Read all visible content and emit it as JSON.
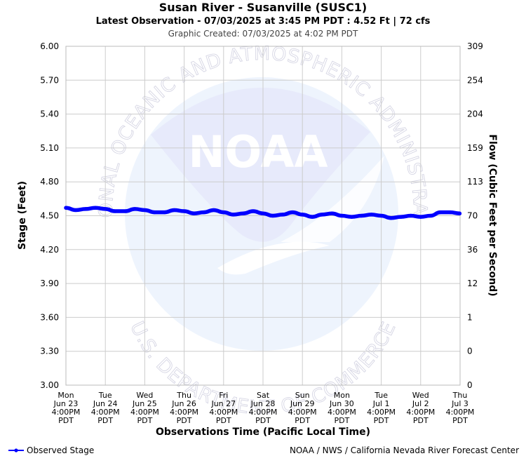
{
  "header": {
    "title": "Susan River - Susanville (SUSC1)",
    "subtitle": "Latest Observation - 07/03/2025 at 3:45 PM PDT : 4.52 Ft | 72 cfs",
    "created": "Graphic Created: 07/03/2025 at 4:02 PM PDT"
  },
  "watermark": {
    "logo_text": "NOAA",
    "ring_top": "NATIONAL OCEANIC AND ATMOSPHERIC ADMINISTRATION",
    "ring_bottom": "U.S. DEPARTMENT OF COMMERCE"
  },
  "footer": {
    "legend_label": "Observed Stage",
    "credit": "NOAA / NWS / California Nevada River Forecast Center"
  },
  "colors": {
    "series": "#0000ff",
    "grid": "#cccccc",
    "watermark_fill": "#eaeefc",
    "watermark_light": "#eef4fd"
  },
  "chart_data": {
    "type": "line",
    "title": "Susan River - Susanville (SUSC1)",
    "xlabel": "Observations Time (Pacific Local Time)",
    "ylabel": "Stage (Feet)",
    "y2label": "Flow (Cubic Feet per Second)",
    "ylim": [
      3.0,
      6.0
    ],
    "xlim": [
      "2025-06-23 16:00",
      "2025-07-03 16:00"
    ],
    "yticks": [
      "3.00",
      "3.30",
      "3.60",
      "3.90",
      "4.20",
      "4.50",
      "4.80",
      "5.10",
      "5.40",
      "5.70",
      "6.00"
    ],
    "y2ticks": [
      "0",
      "0",
      "1",
      "12",
      "36",
      "70",
      "113",
      "159",
      "204",
      "254",
      "309"
    ],
    "xticks": [
      [
        "Mon",
        "Jun 23",
        "4:00PM",
        "PDT"
      ],
      [
        "Tue",
        "Jun 24",
        "4:00PM",
        "PDT"
      ],
      [
        "Wed",
        "Jun 25",
        "4:00PM",
        "PDT"
      ],
      [
        "Thu",
        "Jun 26",
        "4:00PM",
        "PDT"
      ],
      [
        "Fri",
        "Jun 27",
        "4:00PM",
        "PDT"
      ],
      [
        "Sat",
        "Jun 28",
        "4:00PM",
        "PDT"
      ],
      [
        "Sun",
        "Jun 29",
        "4:00PM",
        "PDT"
      ],
      [
        "Mon",
        "Jun 30",
        "4:00PM",
        "PDT"
      ],
      [
        "Tue",
        "Jul 1",
        "4:00PM",
        "PDT"
      ],
      [
        "Wed",
        "Jul 2",
        "4:00PM",
        "PDT"
      ],
      [
        "Thu",
        "Jul 3",
        "4:00PM",
        "PDT"
      ]
    ],
    "grid": true,
    "legend": "bottom-left",
    "series": [
      {
        "name": "Observed Stage",
        "color": "#0000ff",
        "points": [
          [
            "2025-06-23 16:00",
            4.57
          ],
          [
            "2025-06-23 22:00",
            4.55
          ],
          [
            "2025-06-24 04:00",
            4.56
          ],
          [
            "2025-06-24 10:00",
            4.57
          ],
          [
            "2025-06-24 16:00",
            4.56
          ],
          [
            "2025-06-24 22:00",
            4.54
          ],
          [
            "2025-06-25 04:00",
            4.54
          ],
          [
            "2025-06-25 10:00",
            4.56
          ],
          [
            "2025-06-25 16:00",
            4.55
          ],
          [
            "2025-06-25 22:00",
            4.53
          ],
          [
            "2025-06-26 04:00",
            4.53
          ],
          [
            "2025-06-26 10:00",
            4.55
          ],
          [
            "2025-06-26 16:00",
            4.54
          ],
          [
            "2025-06-26 22:00",
            4.52
          ],
          [
            "2025-06-27 04:00",
            4.53
          ],
          [
            "2025-06-27 10:00",
            4.55
          ],
          [
            "2025-06-27 16:00",
            4.53
          ],
          [
            "2025-06-27 22:00",
            4.51
          ],
          [
            "2025-06-28 04:00",
            4.52
          ],
          [
            "2025-06-28 10:00",
            4.54
          ],
          [
            "2025-06-28 16:00",
            4.52
          ],
          [
            "2025-06-28 22:00",
            4.5
          ],
          [
            "2025-06-29 04:00",
            4.51
          ],
          [
            "2025-06-29 10:00",
            4.53
          ],
          [
            "2025-06-29 16:00",
            4.51
          ],
          [
            "2025-06-29 22:00",
            4.49
          ],
          [
            "2025-06-30 04:00",
            4.51
          ],
          [
            "2025-06-30 10:00",
            4.52
          ],
          [
            "2025-06-30 16:00",
            4.5
          ],
          [
            "2025-06-30 22:00",
            4.49
          ],
          [
            "2025-07-01 04:00",
            4.5
          ],
          [
            "2025-07-01 10:00",
            4.51
          ],
          [
            "2025-07-01 16:00",
            4.5
          ],
          [
            "2025-07-01 22:00",
            4.48
          ],
          [
            "2025-07-02 04:00",
            4.49
          ],
          [
            "2025-07-02 10:00",
            4.5
          ],
          [
            "2025-07-02 16:00",
            4.49
          ],
          [
            "2025-07-02 22:00",
            4.5
          ],
          [
            "2025-07-03 04:00",
            4.53
          ],
          [
            "2025-07-03 10:00",
            4.53
          ],
          [
            "2025-07-03 15:45",
            4.52
          ]
        ]
      }
    ]
  }
}
